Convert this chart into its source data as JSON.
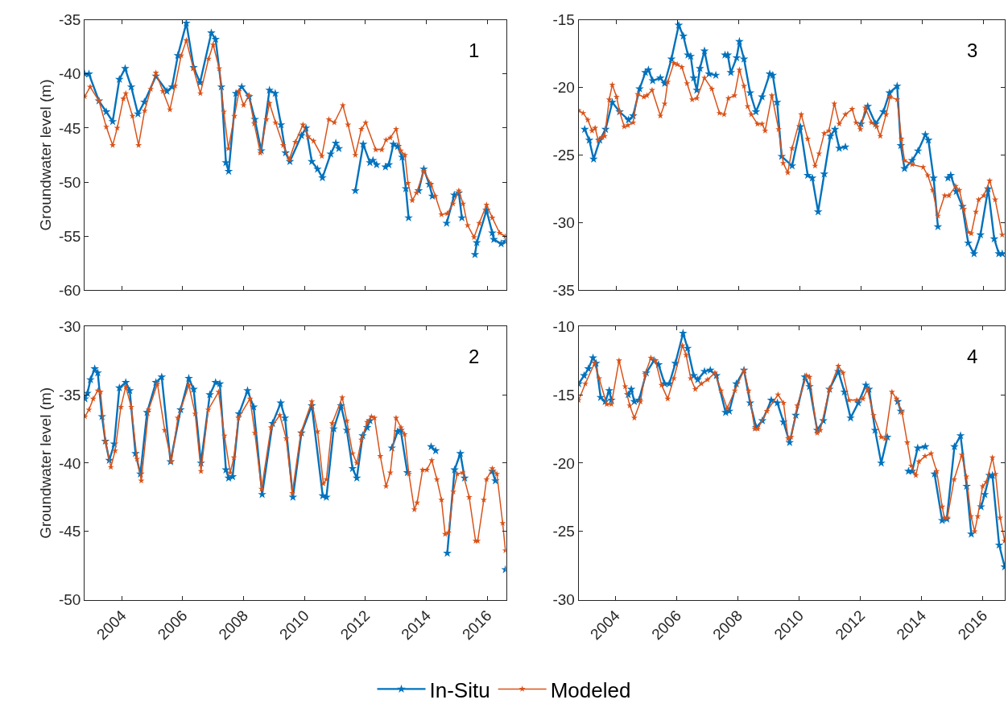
{
  "chart_data": [
    {
      "type": "line",
      "ylabel": "Groundwater level (m)",
      "annotations": [
        "1"
      ],
      "xlim": [
        2002.78,
        2016.62
      ],
      "xticks": [
        2004,
        2006,
        2008,
        2010,
        2012,
        2014,
        2016
      ],
      "ylim": [
        -60,
        -35
      ],
      "yticks": [
        -60,
        -55,
        -50,
        -45,
        -40,
        -35
      ],
      "tick_labels": "y",
      "marker": "star",
      "legend": "bottom",
      "series": [
        {
          "name": "In-Situ",
          "color": "#0072bd",
          "x": [
            2002.78,
            2002.92,
            2003.25,
            2003.49,
            2003.7,
            2003.92,
            2004.11,
            2004.31,
            2004.53,
            2004.74,
            2005.12,
            2005.48,
            2005.65,
            2005.84,
            2006.12,
            2006.36,
            2006.57,
            2006.94,
            2007.08,
            2007.27,
            2007.42,
            2007.51,
            2007.75,
            2007.94,
            2008.18,
            2008.37,
            2008.58,
            2008.85,
            2009.04,
            2009.23,
            2009.38,
            2009.52,
            2009.9,
            2010.05,
            2010.24,
            2010.43,
            2010.59,
            2010.86,
            2011.03,
            2011.13,
            2011.4,
            2011.67,
            2011.93,
            2012.15,
            2012.25,
            2012.37,
            2012.5,
            2012.66,
            2012.77,
            2012.92,
            2013.06,
            2013.21,
            2013.33,
            2013.42,
            2013.6,
            2013.75,
            2013.92,
            2014.1,
            2014.2,
            2014.45,
            2014.67,
            2014.92,
            2015.07,
            2015.17,
            2015.4,
            2015.6,
            2015.66,
            2015.98,
            2016.17,
            2016.22,
            2016.46,
            2016.6
          ],
          "values": [
            -40.0,
            -40.0,
            -42.5,
            -43.5,
            -44.4,
            -40.5,
            -39.5,
            -41.2,
            -43.7,
            -42.6,
            -40.2,
            -41.6,
            -41.2,
            -38.3,
            -35.3,
            -39.4,
            -40.8,
            -36.2,
            -36.8,
            -41.2,
            -48.2,
            -49.0,
            -41.8,
            -41.2,
            -42.1,
            -44.2,
            -47.1,
            -41.5,
            -41.8,
            -44.7,
            -47.3,
            -48.1,
            -45.7,
            -45.0,
            -48.1,
            -48.8,
            -49.6,
            -47.4,
            -46.4,
            -46.9,
            null,
            -50.8,
            -46.5,
            -48.2,
            -48.0,
            -48.4,
            null,
            -48.6,
            -48.4,
            -46.5,
            -46.7,
            -47.7,
            -50.6,
            -53.3,
            null,
            -50.8,
            -48.8,
            -50.2,
            -51.3,
            null,
            -53.8,
            -51.2,
            -51.0,
            -53.3,
            null,
            -56.7,
            -55.6,
            -52.6,
            -54.7,
            -55.3,
            -55.7,
            -55.5
          ]
        },
        {
          "name": "Modeled",
          "color": "#d95319",
          "x": [
            2002.78,
            2002.96,
            2003.25,
            2003.49,
            2003.7,
            2003.85,
            2004.05,
            2004.13,
            2004.35,
            2004.55,
            2004.75,
            2004.95,
            2005.12,
            2005.35,
            2005.58,
            2005.75,
            2005.95,
            2006.12,
            2006.35,
            2006.58,
            2006.85,
            2007.0,
            2007.2,
            2007.35,
            2007.5,
            2007.7,
            2007.85,
            2008.0,
            2008.17,
            2008.35,
            2008.55,
            2008.75,
            2008.85,
            2009.05,
            2009.3,
            2009.5,
            2009.7,
            2009.95,
            2010.12,
            2010.3,
            2010.57,
            2010.8,
            2010.98,
            2011.26,
            2011.43,
            2011.67,
            2011.87,
            2012.01,
            2012.34,
            2012.54,
            2012.68,
            2012.82,
            2013.01,
            2013.16,
            2013.3,
            2013.4,
            2013.54,
            2013.68,
            2013.92,
            2014.16,
            2014.3,
            2014.5,
            2014.69,
            2014.88,
            2015.07,
            2015.21,
            2015.36,
            2015.57,
            2015.74,
            2015.98,
            2016.17,
            2016.41,
            2016.6
          ],
          "values": [
            -42.1,
            -41.2,
            -42.5,
            -44.9,
            -46.6,
            -45.0,
            -42.3,
            -41.8,
            -43.9,
            -46.6,
            -43.4,
            -41.4,
            -39.9,
            -41.6,
            -43.3,
            -41.1,
            -38.3,
            -36.9,
            -39.5,
            -41.8,
            -38.6,
            -37.3,
            -39.5,
            -43.5,
            -46.9,
            -43.9,
            -41.6,
            -42.9,
            -42.0,
            -44.6,
            -47.3,
            -44.2,
            -42.7,
            -44.5,
            -46.6,
            -47.9,
            -46.3,
            -44.7,
            -45.8,
            -46.2,
            -47.6,
            -44.2,
            -44.5,
            -42.9,
            -44.7,
            -47.5,
            -45.1,
            -44.5,
            -47.0,
            -47.0,
            -46.1,
            -45.9,
            -45.1,
            -47.1,
            -47.5,
            -50.1,
            -51.7,
            -51.0,
            -49.0,
            -50.2,
            -51.3,
            -53.0,
            -52.9,
            -52.0,
            -50.8,
            -52.0,
            -54.0,
            -55.1,
            -53.8,
            -52.1,
            -53.3,
            -54.7,
            -55.0
          ]
        }
      ]
    },
    {
      "type": "line",
      "annotations": [
        "3"
      ],
      "xlim": [
        2002.78,
        2016.7
      ],
      "xticks": [
        2004,
        2006,
        2008,
        2010,
        2012,
        2014,
        2016
      ],
      "ylim": [
        -35,
        -15
      ],
      "yticks": [
        -35,
        -30,
        -25,
        -20,
        -15
      ],
      "tick_labels": "y",
      "marker": "star",
      "legend": "bottom",
      "series": [
        {
          "name": "In-Situ",
          "color": "#0072bd",
          "x": [
            2002.98,
            2003.13,
            2003.27,
            2003.47,
            2003.66,
            2003.88,
            2004.12,
            2004.41,
            2004.56,
            2004.77,
            2004.96,
            2005.06,
            2005.2,
            2005.45,
            2005.59,
            2005.81,
            2006.05,
            2006.2,
            2006.35,
            2006.44,
            2006.54,
            2006.64,
            2006.74,
            2006.89,
            2007.04,
            2007.26,
            2007.4,
            2007.56,
            2007.65,
            2007.75,
            2007.94,
            2008.03,
            2008.18,
            2008.38,
            2008.57,
            2008.77,
            2009.02,
            2009.12,
            2009.26,
            2009.41,
            2009.75,
            2010.02,
            2010.26,
            2010.41,
            2010.6,
            2010.8,
            2011.0,
            2011.15,
            2011.29,
            2011.49,
            2011.76,
            2012.0,
            2012.22,
            2012.48,
            2012.73,
            2012.93,
            2013.18,
            2013.3,
            2013.42,
            2013.67,
            2013.86,
            2014.1,
            2014.2,
            2014.37,
            2014.51,
            2014.66,
            2014.84,
            2014.93,
            2015.11,
            2015.31,
            2015.5,
            2015.69,
            2015.9,
            2016.15,
            2016.35,
            2016.5,
            2016.61
          ],
          "values": [
            -23.1,
            -23.9,
            -25.3,
            -23.9,
            -23.1,
            -21.1,
            -21.8,
            -22.4,
            -22.1,
            -20.1,
            -18.9,
            -18.7,
            -19.5,
            -19.3,
            -19.7,
            -17.9,
            -15.4,
            -16.2,
            -17.6,
            -17.7,
            -19.3,
            -20.2,
            -18.6,
            -17.3,
            -19.0,
            -19.1,
            null,
            -17.6,
            -17.6,
            -18.9,
            -17.8,
            -16.6,
            -17.9,
            -20.4,
            -21.8,
            -20.7,
            -19.0,
            -19.1,
            -21.1,
            -25.1,
            -25.8,
            -22.9,
            -26.5,
            -26.7,
            -29.2,
            -26.4,
            -23.6,
            -23.1,
            -24.5,
            -24.4,
            null,
            -22.7,
            -21.4,
            -22.7,
            -21.8,
            -20.4,
            -19.9,
            -24.3,
            -26.0,
            -25.4,
            -24.7,
            -23.5,
            -23.9,
            -26.7,
            -30.3,
            null,
            -26.7,
            -26.5,
            -27.7,
            -28.8,
            -31.5,
            -32.3,
            -30.9,
            -27.5,
            -31.2,
            -32.3,
            -32.3
          ]
        },
        {
          "name": "Modeled",
          "color": "#d95319",
          "x": [
            2002.78,
            2002.93,
            2003.08,
            2003.22,
            2003.32,
            2003.42,
            2003.56,
            2003.63,
            2003.78,
            2003.88,
            2004.02,
            2004.12,
            2004.27,
            2004.39,
            2004.56,
            2004.71,
            2004.91,
            2005.01,
            2005.18,
            2005.45,
            2005.59,
            2005.69,
            2005.89,
            2006.0,
            2006.15,
            2006.32,
            2006.49,
            2006.64,
            2006.89,
            2007.13,
            2007.38,
            2007.53,
            2007.67,
            2007.87,
            2008.03,
            2008.18,
            2008.3,
            2008.42,
            2008.62,
            2008.77,
            2008.87,
            2009.09,
            2009.31,
            2009.46,
            2009.61,
            2009.75,
            2010.05,
            2010.26,
            2010.5,
            2010.63,
            2010.8,
            2010.95,
            2011.13,
            2011.29,
            2011.49,
            2011.71,
            2011.84,
            2011.98,
            2012.14,
            2012.34,
            2012.51,
            2012.63,
            2012.82,
            2012.95,
            2013.18,
            2013.32,
            2013.42,
            2013.67,
            2014.03,
            2014.18,
            2014.34,
            2014.51,
            2014.73,
            2014.87,
            2015.09,
            2015.21,
            2015.36,
            2015.5,
            2015.6,
            2015.75,
            2015.84,
            2016.01,
            2016.2,
            2016.38,
            2016.61
          ],
          "values": [
            -21.7,
            -21.9,
            -22.4,
            -23.2,
            -23.0,
            -23.9,
            -23.7,
            -23.6,
            -20.9,
            -19.8,
            -20.7,
            -21.8,
            -22.9,
            -22.8,
            -22.6,
            -20.5,
            -20.7,
            -20.6,
            -20.2,
            -22.1,
            -21.2,
            -19.6,
            -18.2,
            -18.3,
            -18.5,
            -19.7,
            -20.9,
            -20.8,
            -19.3,
            -20.1,
            -21.9,
            -22.0,
            -20.8,
            -20.6,
            -18.7,
            -19.9,
            -21.4,
            -22.0,
            -22.7,
            -22.7,
            -23.2,
            -20.6,
            -23.1,
            -25.6,
            -26.3,
            -24.5,
            -22.0,
            -23.8,
            -25.8,
            -24.9,
            -23.4,
            -23.2,
            -21.2,
            -22.7,
            -22.0,
            -21.6,
            -22.6,
            -23.1,
            -21.5,
            -22.6,
            -22.9,
            -23.6,
            -22.0,
            -20.7,
            -20.9,
            -23.8,
            -25.4,
            -25.7,
            -25.9,
            -26.5,
            -27.6,
            -29.5,
            -28.0,
            -28.0,
            -27.3,
            -27.6,
            -29.0,
            -30.7,
            -30.8,
            -29.2,
            -28.3,
            -28.0,
            -26.9,
            -28.3,
            -30.9
          ]
        }
      ]
    },
    {
      "type": "line",
      "ylabel": "Groundwater level (m)",
      "annotations": [
        "2"
      ],
      "xlim": [
        2002.78,
        2016.62
      ],
      "xticks": [
        2004,
        2006,
        2008,
        2010,
        2012,
        2014,
        2016
      ],
      "ylim": [
        -50,
        -30
      ],
      "yticks": [
        -50,
        -45,
        -40,
        -35,
        -30
      ],
      "marker": "star",
      "legend": "bottom",
      "series": [
        {
          "name": "In-Situ",
          "color": "#0072bd",
          "x": [
            2002.79,
            2002.87,
            2002.97,
            2003.11,
            2003.21,
            2003.35,
            2003.46,
            2003.59,
            2003.75,
            2003.92,
            2004.13,
            2004.26,
            2004.45,
            2004.61,
            2004.83,
            2005.12,
            2005.31,
            2005.6,
            2005.93,
            2006.2,
            2006.36,
            2006.6,
            2006.89,
            2007.08,
            2007.22,
            2007.42,
            2007.51,
            2007.64,
            2007.85,
            2008.13,
            2008.33,
            2008.61,
            2008.95,
            2009.22,
            2009.36,
            2009.62,
            2009.9,
            2010.24,
            2010.6,
            2010.72,
            2010.96,
            2011.2,
            2011.39,
            2011.58,
            2011.72,
            2011.91,
            2012.06,
            2012.15,
            2012.5,
            2012.87,
            2013.06,
            2013.16,
            2013.38,
            2013.8,
            2014.16,
            2014.31,
            2014.5,
            2014.69,
            2014.93,
            2015.12,
            2015.26,
            2015.7,
            2016.17,
            2016.27,
            2016.45,
            2016.6
          ],
          "values": [
            -35.3,
            -34.9,
            -33.9,
            -33.1,
            -33.4,
            -36.6,
            -38.4,
            -39.8,
            -38.6,
            -34.5,
            -34.1,
            -34.7,
            -39.3,
            -40.8,
            -36.3,
            -34.1,
            -33.7,
            -39.9,
            -36.1,
            -33.8,
            -34.6,
            -40.0,
            -35.0,
            -34.1,
            -34.2,
            -40.5,
            -41.1,
            -41.0,
            -36.4,
            -34.7,
            -35.9,
            -42.3,
            -37.1,
            -35.6,
            -36.7,
            -42.5,
            -37.8,
            -35.8,
            -42.4,
            -42.5,
            -37.5,
            -35.8,
            -37.6,
            -40.4,
            -41.1,
            -38.0,
            -37.4,
            -36.9,
            null,
            -38.9,
            -37.7,
            -37.6,
            -40.7,
            null,
            -38.8,
            -39.1,
            null,
            -46.6,
            -40.5,
            -39.3,
            -41.1,
            null,
            -40.6,
            -41.3,
            null,
            -47.8
          ]
        },
        {
          "name": "Modeled",
          "color": "#d95319",
          "x": [
            2002.79,
            2002.92,
            2003.06,
            2003.21,
            2003.3,
            2003.46,
            2003.64,
            2003.78,
            2003.97,
            2004.13,
            2004.31,
            2004.5,
            2004.64,
            2004.88,
            2005.17,
            2005.41,
            2005.63,
            2005.84,
            2006.2,
            2006.41,
            2006.6,
            2006.84,
            2007.18,
            2007.37,
            2007.56,
            2007.68,
            2007.83,
            2008.21,
            2008.37,
            2008.59,
            2008.9,
            2009.19,
            2009.4,
            2009.6,
            2009.88,
            2010.24,
            2010.43,
            2010.62,
            2010.72,
            2010.91,
            2011.24,
            2011.39,
            2011.58,
            2011.72,
            2011.87,
            2012.06,
            2012.2,
            2012.3,
            2012.49,
            2012.68,
            2012.82,
            2013.01,
            2013.17,
            2013.29,
            2013.43,
            2013.61,
            2013.7,
            2013.88,
            2014.02,
            2014.18,
            2014.35,
            2014.5,
            2014.62,
            2014.73,
            2014.89,
            2015.02,
            2015.2,
            2015.41,
            2015.62,
            2015.69,
            2015.89,
            2015.98,
            2016.17,
            2016.32,
            2016.51,
            2016.6
          ],
          "values": [
            -36.6,
            -36.1,
            -35.3,
            -34.7,
            -34.8,
            -38.4,
            -40.3,
            -39.1,
            -35.9,
            -34.4,
            -35.9,
            -39.7,
            -41.3,
            -36.1,
            -34.2,
            -37.6,
            -39.9,
            -36.7,
            -34.3,
            -36.4,
            -40.6,
            -36.1,
            -34.8,
            -38.0,
            -40.7,
            -39.6,
            -36.7,
            -35.3,
            -37.8,
            -41.9,
            -37.4,
            -36.5,
            -38.2,
            -42.2,
            -37.8,
            -35.5,
            -37.7,
            -41.5,
            -41.2,
            -37.1,
            -35.2,
            -36.9,
            -39.3,
            -40.0,
            -38.3,
            -37.0,
            -36.6,
            -36.7,
            -39.5,
            -41.7,
            -40.7,
            -36.7,
            -37.4,
            -37.9,
            -40.8,
            -43.4,
            -42.9,
            -40.5,
            -40.5,
            -39.8,
            -41.2,
            -42.7,
            -45.2,
            -45.1,
            -42.1,
            -40.8,
            -40.7,
            -42.5,
            -45.7,
            -45.7,
            -42.7,
            -41.2,
            -40.4,
            -40.8,
            -44.4,
            -46.4
          ]
        }
      ]
    },
    {
      "type": "line",
      "annotations": [
        "4"
      ],
      "xlim": [
        2002.8,
        2016.72
      ],
      "xticks": [
        2004,
        2006,
        2008,
        2010,
        2012,
        2014,
        2016
      ],
      "ylim": [
        -30,
        -10
      ],
      "yticks": [
        -30,
        -25,
        -20,
        -15,
        -10
      ],
      "marker": "star",
      "legend": "bottom",
      "series": [
        {
          "name": "In-Situ",
          "color": "#0072bd",
          "x": [
            2002.8,
            2002.98,
            2003.12,
            2003.27,
            2003.37,
            2003.52,
            2003.67,
            2003.8,
            2003.87,
            2004.15,
            2004.42,
            2004.52,
            2004.62,
            2004.77,
            2005.01,
            2005.26,
            2005.41,
            2005.61,
            2005.76,
            2005.96,
            2006.21,
            2006.36,
            2006.56,
            2006.69,
            2006.91,
            2007.1,
            2007.3,
            2007.6,
            2007.72,
            2007.95,
            2008.2,
            2008.4,
            2008.6,
            2008.8,
            2009.09,
            2009.29,
            2009.49,
            2009.69,
            2009.89,
            2010.19,
            2010.34,
            2010.59,
            2010.79,
            2010.99,
            2011.28,
            2011.48,
            2011.68,
            2011.93,
            2012.18,
            2012.28,
            2012.48,
            2012.68,
            2012.88,
            2013.05,
            2013.22,
            2013.32,
            2013.45,
            2013.57,
            2013.69,
            2013.87,
            2014.12,
            2014.27,
            2014.42,
            2014.67,
            2014.82,
            2015.07,
            2015.27,
            2015.47,
            2015.62,
            2015.8,
            2015.94,
            2016.06,
            2016.21,
            2016.31,
            2016.53,
            2016.71
          ],
          "values": [
            -14.2,
            -13.6,
            -13.1,
            -12.3,
            -12.7,
            -15.2,
            -15.5,
            -14.7,
            -15.4,
            null,
            -15.0,
            -14.6,
            -15.5,
            -15.4,
            -13.4,
            -12.5,
            -12.8,
            -14.2,
            -14.2,
            -12.7,
            -10.5,
            -11.6,
            -13.6,
            -13.9,
            -13.3,
            -13.2,
            -13.6,
            -16.3,
            -16.2,
            -14.2,
            -13.2,
            -15.6,
            -17.4,
            -16.9,
            -15.4,
            -15.6,
            -17.0,
            -18.5,
            -16.5,
            -13.7,
            -14.4,
            -17.6,
            -16.9,
            -14.6,
            -13.3,
            -14.8,
            -16.7,
            -15.6,
            -14.3,
            -14.6,
            -17.6,
            -20.0,
            -18.1,
            null,
            -15.5,
            -16.2,
            null,
            -20.6,
            -20.6,
            -18.9,
            -18.8,
            null,
            -20.8,
            -24.2,
            -24.1,
            -18.8,
            -18.0,
            -21.7,
            -25.2,
            null,
            -23.2,
            -22.3,
            -20.9,
            -20.9,
            -26.0,
            -27.6
          ]
        },
        {
          "name": "Modeled",
          "color": "#d95319",
          "x": [
            2002.8,
            2003.02,
            2003.32,
            2003.47,
            2003.72,
            2003.87,
            2004.12,
            2004.32,
            2004.47,
            2004.62,
            2004.82,
            2004.97,
            2005.16,
            2005.31,
            2005.51,
            2005.71,
            2005.91,
            2006.19,
            2006.31,
            2006.46,
            2006.61,
            2006.81,
            2007.01,
            2007.25,
            2007.45,
            2007.65,
            2007.9,
            2008.2,
            2008.35,
            2008.55,
            2008.65,
            2008.95,
            2009.31,
            2009.49,
            2009.64,
            2009.74,
            2009.94,
            2010.24,
            2010.34,
            2010.59,
            2010.69,
            2010.99,
            2011.28,
            2011.43,
            2011.63,
            2011.88,
            2012.08,
            2012.23,
            2012.43,
            2012.68,
            2012.81,
            2013.03,
            2013.18,
            2013.36,
            2013.53,
            2013.66,
            2013.81,
            2013.91,
            2014.11,
            2014.31,
            2014.49,
            2014.67,
            2014.74,
            2014.84,
            2015.06,
            2015.31,
            2015.46,
            2015.61,
            2015.73,
            2015.83,
            2015.99,
            2016.11,
            2016.31,
            2016.41,
            2016.56,
            2016.71
          ],
          "values": [
            -15.4,
            -14.2,
            -12.7,
            -13.8,
            -15.7,
            -15.7,
            -12.5,
            -14.4,
            -15.8,
            -16.7,
            -15.5,
            -13.5,
            -12.3,
            -12.5,
            -14.3,
            -15.3,
            -13.8,
            -11.4,
            -12.1,
            -13.8,
            -14.6,
            -14.2,
            -13.9,
            -13.4,
            -14.7,
            -16.0,
            -14.7,
            -13.2,
            -14.7,
            -17.5,
            -17.5,
            -16.2,
            -15.0,
            -15.6,
            -18.2,
            -18.1,
            -15.8,
            -13.6,
            -13.7,
            -17.8,
            -17.6,
            -14.6,
            -12.9,
            -13.4,
            -15.4,
            -15.4,
            -15.3,
            -14.6,
            -16.5,
            -18.1,
            -18.2,
            -14.8,
            -15.3,
            -16.3,
            -18.5,
            -20.2,
            -20.9,
            -19.9,
            -19.5,
            -19.3,
            -20.6,
            -23.2,
            -24.0,
            -24.0,
            -21.2,
            -19.4,
            -21.0,
            -23.9,
            -25.0,
            -23.9,
            -21.7,
            -21.4,
            -19.6,
            -20.8,
            -24.0,
            -25.7
          ]
        }
      ]
    }
  ]
}
